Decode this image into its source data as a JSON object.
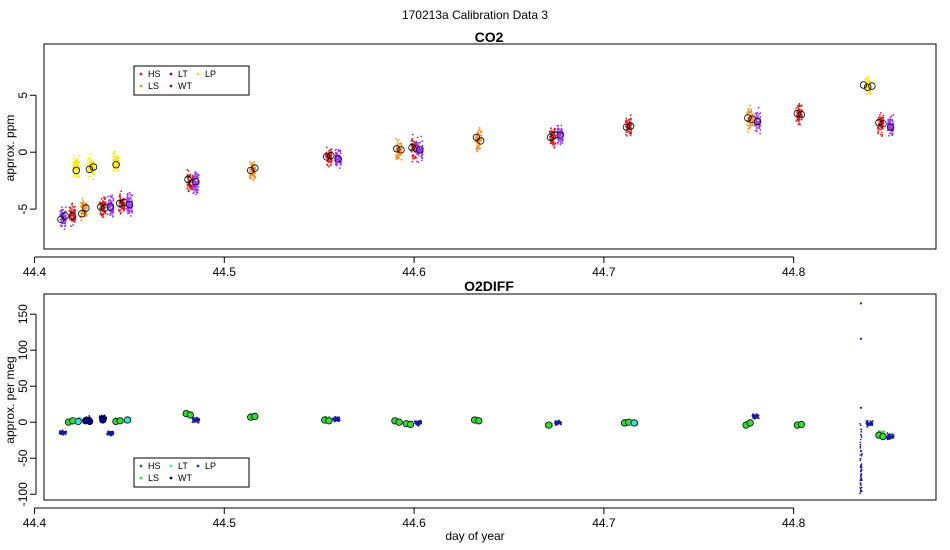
{
  "figure_title": "170213a   Calibration Data 3",
  "chart_data": [
    {
      "type": "scatter",
      "title": "CO2",
      "xlabel": "",
      "ylabel": "approx. ppm",
      "xlim": [
        44.405,
        44.875
      ],
      "ylim": [
        -8.5,
        9.5
      ],
      "xticks": [
        44.4,
        44.5,
        44.6,
        44.7,
        44.8
      ],
      "xtick_labels": [
        "44.4",
        "44.5",
        "44.6",
        "44.7",
        "44.8"
      ],
      "yticks": [
        -5,
        0,
        5
      ],
      "ytick_labels": [
        "-5",
        "0",
        "5"
      ],
      "legend": {
        "position": "top-left",
        "entries": [
          {
            "name": "HS",
            "color": "#e41a1c"
          },
          {
            "name": "LS",
            "color": "#ff8c1a"
          },
          {
            "name": "LT",
            "color": "#8b1a1a"
          },
          {
            "name": "WT",
            "color": "#8b1a1a"
          },
          {
            "name": "LP",
            "color": "#ffd700"
          }
        ]
      },
      "clusters": [
        {
          "x": 44.415,
          "y": -5.8,
          "color": "#9b30ff",
          "means": [
            -5.9,
            -5.6
          ]
        },
        {
          "x": 44.42,
          "y": -5.5,
          "color": "#e41a1c",
          "means": [
            -5.6
          ]
        },
        {
          "x": 44.422,
          "y": -1.2,
          "color": "#ffe600",
          "means": [
            -1.6
          ]
        },
        {
          "x": 44.426,
          "y": -5.0,
          "color": "#ff8c1a",
          "means": [
            -5.4,
            -4.9
          ]
        },
        {
          "x": 44.43,
          "y": -1.3,
          "color": "#ffe600",
          "means": [
            -1.5,
            -1.3
          ]
        },
        {
          "x": 44.436,
          "y": -4.8,
          "color": "#e41a1c",
          "means": [
            -4.8,
            -4.9
          ]
        },
        {
          "x": 44.44,
          "y": -4.8,
          "color": "#9b30ff",
          "means": [
            -4.8
          ]
        },
        {
          "x": 44.443,
          "y": -1.0,
          "color": "#ffe600",
          "means": [
            -1.1
          ]
        },
        {
          "x": 44.446,
          "y": -4.5,
          "color": "#e41a1c",
          "means": [
            -4.5,
            -4.4
          ]
        },
        {
          "x": 44.45,
          "y": -4.6,
          "color": "#9b30ff",
          "means": [
            -4.6
          ]
        },
        {
          "x": 44.482,
          "y": -2.6,
          "color": "#e41a1c",
          "means": [
            -2.4,
            -2.7
          ]
        },
        {
          "x": 44.485,
          "y": -2.7,
          "color": "#9b30ff",
          "means": [
            -2.6
          ]
        },
        {
          "x": 44.515,
          "y": -1.6,
          "color": "#ff8c1a",
          "means": [
            -1.6,
            -1.4
          ]
        },
        {
          "x": 44.555,
          "y": -0.4,
          "color": "#e41a1c",
          "means": [
            -0.4,
            -0.3
          ]
        },
        {
          "x": 44.56,
          "y": -0.5,
          "color": "#9b30ff",
          "means": [
            -0.6
          ]
        },
        {
          "x": 44.592,
          "y": 0.2,
          "color": "#ff8c1a",
          "means": [
            0.3,
            0.2
          ]
        },
        {
          "x": 44.6,
          "y": 0.3,
          "color": "#e41a1c",
          "means": [
            0.4,
            0.3
          ]
        },
        {
          "x": 44.603,
          "y": 0.2,
          "color": "#9b30ff",
          "means": [
            0.2
          ]
        },
        {
          "x": 44.634,
          "y": 1.1,
          "color": "#ff8c1a",
          "means": [
            1.3,
            1.0
          ]
        },
        {
          "x": 44.673,
          "y": 1.4,
          "color": "#e41a1c",
          "means": [
            1.3,
            1.5
          ]
        },
        {
          "x": 44.677,
          "y": 1.5,
          "color": "#9b30ff",
          "means": [
            1.5
          ]
        },
        {
          "x": 44.713,
          "y": 2.2,
          "color": "#e41a1c",
          "means": [
            2.2,
            2.3
          ]
        },
        {
          "x": 44.777,
          "y": 2.9,
          "color": "#ff8c1a",
          "means": [
            3.0,
            2.9
          ]
        },
        {
          "x": 44.781,
          "y": 2.7,
          "color": "#9b30ff",
          "means": [
            2.7
          ]
        },
        {
          "x": 44.803,
          "y": 3.4,
          "color": "#e41a1c",
          "means": [
            3.4,
            3.3
          ]
        },
        {
          "x": 44.839,
          "y": 5.8,
          "color": "#ffe600",
          "means": [
            5.9,
            5.7,
            5.8
          ]
        },
        {
          "x": 44.846,
          "y": 2.5,
          "color": "#e41a1c",
          "means": [
            2.6,
            2.5
          ]
        },
        {
          "x": 44.851,
          "y": 2.3,
          "color": "#9b30ff",
          "means": [
            2.2
          ]
        }
      ]
    },
    {
      "type": "scatter",
      "title": "O2DIFF",
      "xlabel": "day of year",
      "ylabel": "approx. per meg",
      "xlim": [
        44.405,
        44.875
      ],
      "ylim": [
        -108,
        178
      ],
      "xticks": [
        44.4,
        44.5,
        44.6,
        44.7,
        44.8
      ],
      "xtick_labels": [
        "44.4",
        "44.5",
        "44.6",
        "44.7",
        "44.8"
      ],
      "yticks": [
        -100,
        -50,
        0,
        50,
        100,
        150
      ],
      "ytick_labels": [
        "-100",
        "-50",
        "0",
        "50",
        "100",
        "150"
      ],
      "legend": {
        "position": "bottom-left",
        "entries": [
          {
            "name": "HS",
            "color": "#1a7a1a"
          },
          {
            "name": "LS",
            "color": "#33dd33"
          },
          {
            "name": "LT",
            "color": "#40e0d0"
          },
          {
            "name": "WT",
            "color": "#00008b"
          },
          {
            "name": "LP",
            "color": "#1a3a8b"
          }
        ]
      },
      "clusters": [
        {
          "x": 44.415,
          "y": -14,
          "color": "#1a1aa0",
          "means": []
        },
        {
          "x": 44.419,
          "y": 1,
          "color": "#33dd33",
          "means": [
            0,
            2
          ]
        },
        {
          "x": 44.423,
          "y": 2,
          "color": "#40e0d0",
          "means": [
            1
          ]
        },
        {
          "x": 44.428,
          "y": 4,
          "color": "#00008b",
          "means": [
            2,
            1
          ]
        },
        {
          "x": 44.436,
          "y": 6,
          "color": "#00008b",
          "means": [
            3
          ]
        },
        {
          "x": 44.44,
          "y": -15,
          "color": "#1a1aa0",
          "means": []
        },
        {
          "x": 44.444,
          "y": 2,
          "color": "#33dd33",
          "means": [
            1,
            2
          ]
        },
        {
          "x": 44.449,
          "y": 3,
          "color": "#40e0d0",
          "means": [
            3
          ]
        },
        {
          "x": 44.481,
          "y": 11,
          "color": "#33dd33",
          "means": [
            12,
            10
          ]
        },
        {
          "x": 44.485,
          "y": 3,
          "color": "#1a1aa0",
          "means": []
        },
        {
          "x": 44.515,
          "y": 8,
          "color": "#33dd33",
          "means": [
            7,
            8
          ]
        },
        {
          "x": 44.554,
          "y": 3,
          "color": "#33dd33",
          "means": [
            3,
            2
          ]
        },
        {
          "x": 44.559,
          "y": 4,
          "color": "#1a1aa0",
          "means": []
        },
        {
          "x": 44.591,
          "y": 1,
          "color": "#33dd33",
          "means": [
            2,
            0
          ]
        },
        {
          "x": 44.597,
          "y": -2,
          "color": "#33dd33",
          "means": [
            -2,
            -3
          ]
        },
        {
          "x": 44.602,
          "y": -1,
          "color": "#1a1aa0",
          "means": []
        },
        {
          "x": 44.633,
          "y": 3,
          "color": "#33dd33",
          "means": [
            3,
            2
          ]
        },
        {
          "x": 44.671,
          "y": -4,
          "color": "#33dd33",
          "means": [
            -4
          ]
        },
        {
          "x": 44.676,
          "y": -1,
          "color": "#1a1aa0",
          "means": []
        },
        {
          "x": 44.712,
          "y": -1,
          "color": "#33dd33",
          "means": [
            -1,
            0
          ]
        },
        {
          "x": 44.716,
          "y": -1,
          "color": "#40e0d0",
          "means": [
            -1
          ]
        },
        {
          "x": 44.776,
          "y": -3,
          "color": "#33dd33",
          "means": [
            -4,
            -1
          ]
        },
        {
          "x": 44.78,
          "y": 8,
          "color": "#1a1aa0",
          "means": []
        },
        {
          "x": 44.803,
          "y": -4,
          "color": "#33dd33",
          "means": [
            -4,
            -3
          ]
        },
        {
          "x": 44.84,
          "y": -2,
          "color": "#1a1aa0",
          "means": []
        },
        {
          "x": 44.846,
          "y": -15,
          "color": "#33dd33",
          "means": [
            -18,
            -20
          ]
        },
        {
          "x": 44.851,
          "y": -20,
          "color": "#1a1aa0",
          "means": []
        }
      ],
      "outliers": [
        {
          "x": 44.8355,
          "y": 165
        },
        {
          "x": 44.8355,
          "y": 116
        },
        {
          "x": 44.8355,
          "y": 20
        },
        {
          "x": 44.8355,
          "y": -95
        },
        {
          "x": 44.8355,
          "y": -80
        },
        {
          "x": 44.8355,
          "y": -60
        },
        {
          "x": 44.8355,
          "y": -40
        }
      ]
    }
  ]
}
